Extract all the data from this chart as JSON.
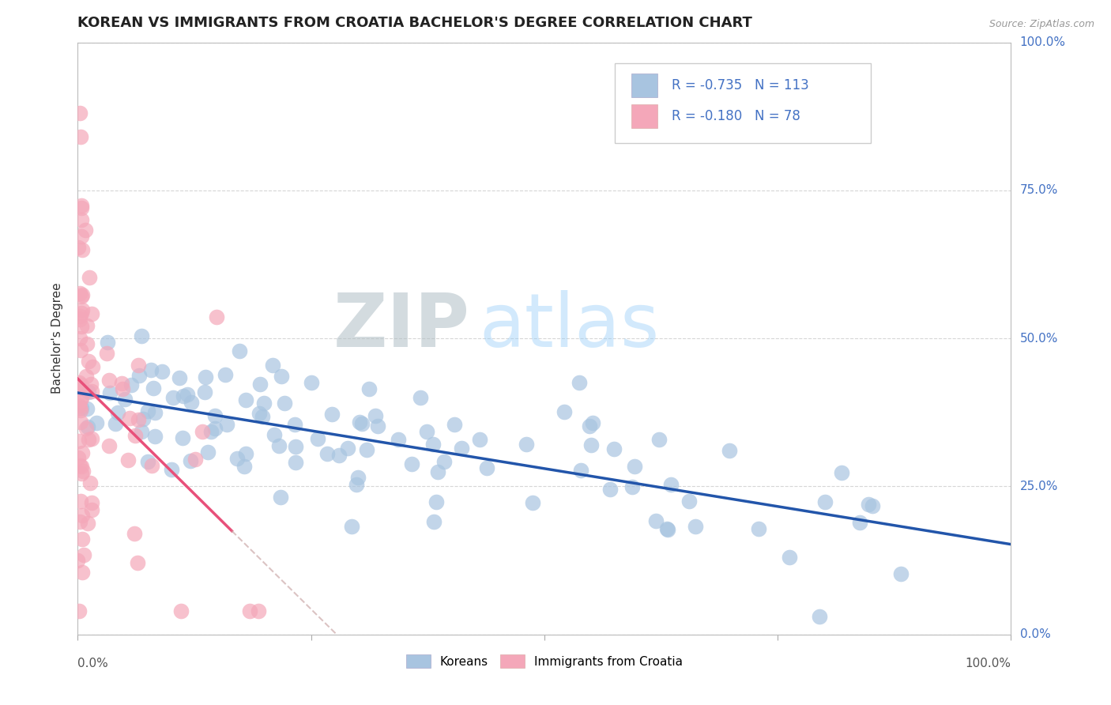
{
  "title": "KOREAN VS IMMIGRANTS FROM CROATIA BACHELOR'S DEGREE CORRELATION CHART",
  "source": "Source: ZipAtlas.com",
  "ylabel": "Bachelor's Degree",
  "ytick_labels": [
    "0.0%",
    "25.0%",
    "50.0%",
    "75.0%",
    "100.0%"
  ],
  "ytick_values": [
    0.0,
    0.25,
    0.5,
    0.75,
    1.0
  ],
  "xlim": [
    0.0,
    1.0
  ],
  "ylim": [
    0.0,
    1.0
  ],
  "korean_R": -0.735,
  "korean_N": 113,
  "croatia_R": -0.18,
  "croatia_N": 78,
  "korean_color": "#a8c4e0",
  "croatia_color": "#f4a7b9",
  "korean_line_color": "#2255aa",
  "croatia_line_color": "#e8507a",
  "legend_r_color": "#4472c4",
  "background_color": "#ffffff",
  "grid_color": "#cccccc",
  "title_fontsize": 13,
  "axis_label_fontsize": 11,
  "tick_fontsize": 11,
  "korean_intercept": 0.42,
  "korean_slope": -0.3,
  "croatia_intercept": 0.42,
  "croatia_slope": -1.5
}
